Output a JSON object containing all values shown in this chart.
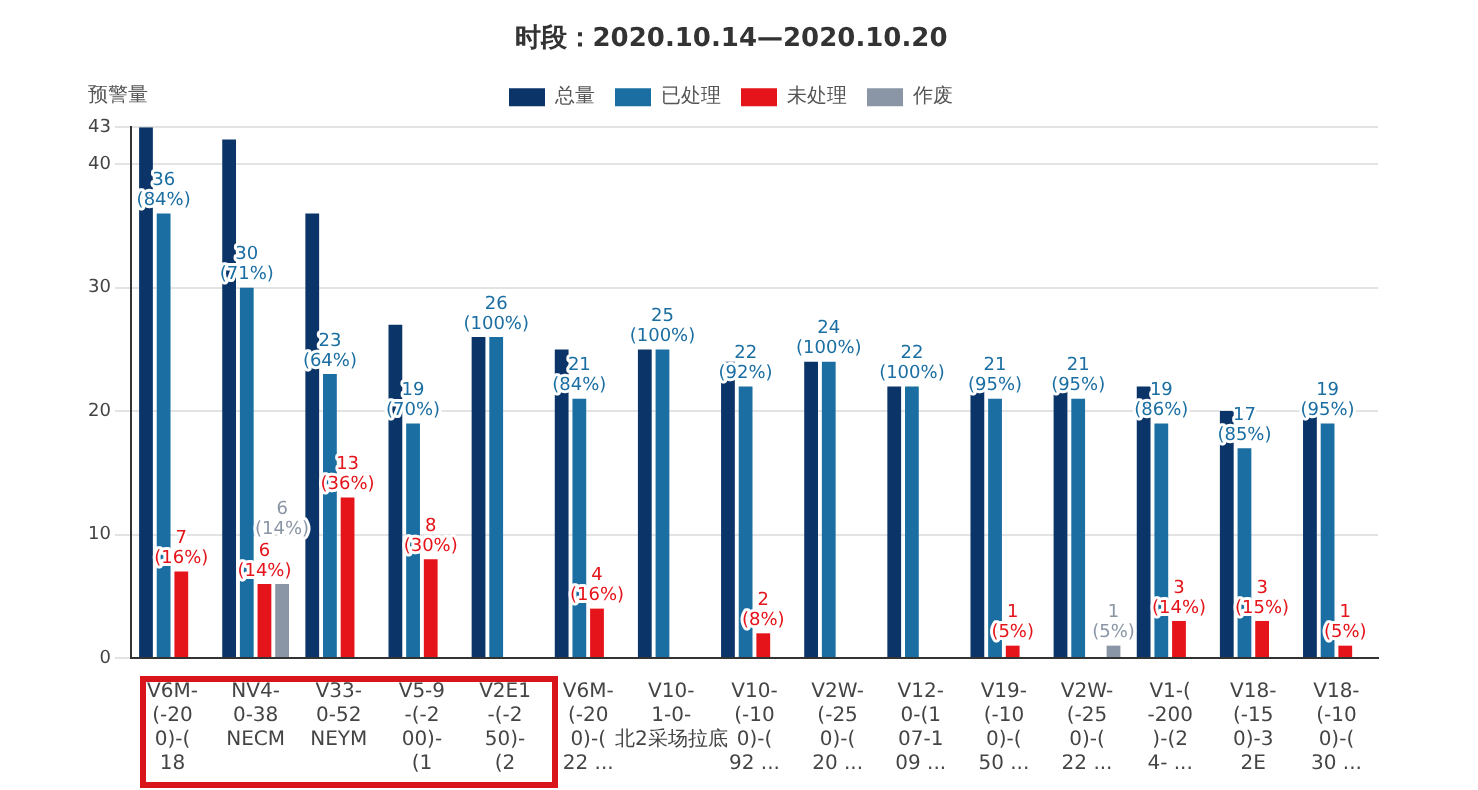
{
  "chart_data": {
    "type": "bar",
    "title": "时段：2020.10.14—2020.10.20",
    "ylabel": "预警量",
    "categories": [
      "V6M-\n(-20\n0)-(\n18",
      "NV4-\n0-38\nNECM",
      "V33-\n0-52\nNEYM",
      "V5-9\n-(-2\n00)-\n(1",
      "V2E1\n-(-2\n50)-\n(2",
      "V6M-\n(-20\n0)-(\n22 ...",
      "V10-\n1-0-\n北2采场拉底",
      "V10-\n(-10\n0)-(\n92 ...",
      "V2W-\n(-25\n0)-(\n20 ...",
      "V12-\n0-(1\n07-1\n09 ...",
      "V19-\n(-10\n0)-(\n50 ...",
      "V2W-\n(-25\n0)-(\n22 ...",
      "V1-(\n-200\n)-(2\n4- ...",
      "V18-\n(-15\n0)-3\n2E",
      "V18-\n(-10\n0)-(\n30 ..."
    ],
    "series": [
      {
        "name": "总量",
        "color": "#0b3568",
        "values": [
          43,
          42,
          36,
          27,
          26,
          25,
          25,
          24,
          24,
          22,
          22,
          22,
          22,
          20,
          20
        ]
      },
      {
        "name": "已处理",
        "color": "#1a6ea2",
        "values": [
          36,
          30,
          23,
          19,
          26,
          21,
          25,
          22,
          24,
          22,
          21,
          21,
          19,
          17,
          19
        ],
        "value_labels": [
          "36\n(84%)",
          "30\n(71%)",
          "23\n(64%)",
          "19\n(70%)",
          "26\n(100%)",
          "21\n(84%)",
          "25\n(100%)",
          "22\n(92%)",
          "24\n(100%)",
          "22\n(100%)",
          "21\n(95%)",
          "21\n(95%)",
          "19\n(86%)",
          "17\n(85%)",
          "19\n(95%)"
        ]
      },
      {
        "name": "未处理",
        "color": "#e5131a",
        "values": [
          7,
          6,
          13,
          8,
          null,
          4,
          null,
          2,
          null,
          null,
          1,
          null,
          3,
          3,
          1
        ],
        "value_labels": [
          "7\n(16%)",
          "6\n(14%)",
          "13\n(36%)",
          "8\n(30%)",
          null,
          "4\n(16%)",
          null,
          "2\n(8%)",
          null,
          null,
          "1\n(5%)",
          null,
          "3\n(14%)",
          "3\n(15%)",
          "1\n(5%)"
        ]
      },
      {
        "name": "作废",
        "color": "#8a95a5",
        "values": [
          null,
          6,
          null,
          null,
          null,
          null,
          null,
          null,
          null,
          null,
          null,
          1,
          null,
          null,
          null
        ],
        "value_labels": [
          null,
          "6\n(14%)",
          null,
          null,
          null,
          null,
          null,
          null,
          null,
          null,
          null,
          "1\n(5%)",
          null,
          null,
          null
        ]
      }
    ],
    "ylim": [
      0,
      43
    ],
    "yticks": [
      0,
      10,
      20,
      30,
      40,
      43
    ],
    "grid": "y",
    "legend": "top"
  }
}
